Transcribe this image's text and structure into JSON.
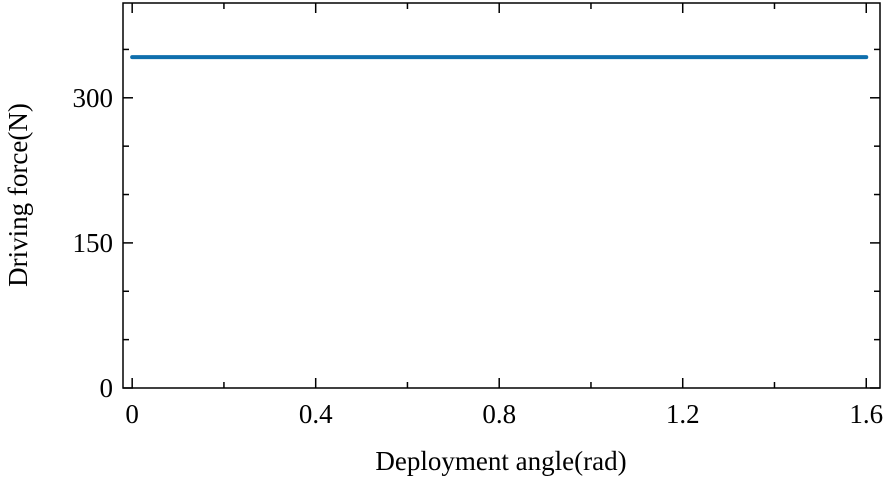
{
  "chart_data": {
    "type": "line",
    "xlabel": "Deployment angle(rad)",
    "ylabel": "Driving force(N)",
    "x": [
      0,
      1.6
    ],
    "series": [
      {
        "name": null,
        "color": "#0f6fad",
        "values": [
          342,
          342
        ]
      }
    ],
    "xlim": [
      -0.02,
      1.63
    ],
    "ylim": [
      0,
      398
    ],
    "xticks": [
      0,
      0.4,
      0.8,
      1.2,
      1.6
    ],
    "xminorticks": [
      0.2,
      0.6,
      1.0,
      1.4
    ],
    "yticks": [
      0,
      150,
      300
    ],
    "yminorticks": [
      50,
      100,
      200,
      250,
      350
    ],
    "grid": false
  }
}
